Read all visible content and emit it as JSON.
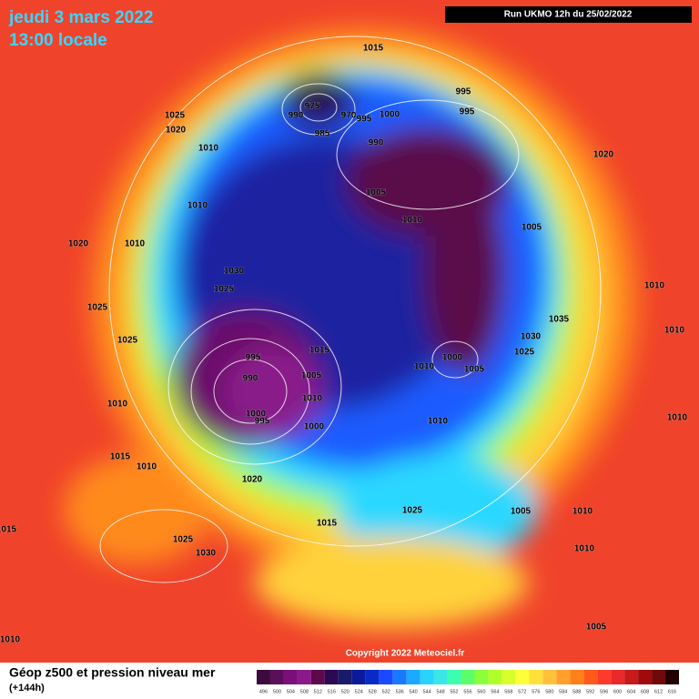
{
  "header": {
    "date": "jeudi 3 mars 2022",
    "time": "13:00 locale",
    "run": "Run UKMO 12h du 25/02/2022"
  },
  "isobar_labels": [
    "1015",
    "1025",
    "1020",
    "1010",
    "975",
    "970",
    "990",
    "985",
    "995",
    "1000",
    "995",
    "995",
    "990",
    "1020",
    "1010",
    "1005",
    "1010",
    "1020",
    "1010",
    "1005",
    "1030",
    "1025",
    "1010",
    "1035",
    "1025",
    "1010",
    "1030",
    "1025",
    "1015",
    "1025",
    "995",
    "1000",
    "1010",
    "1005",
    "990",
    "1005",
    "1010",
    "1010",
    "1000",
    "995",
    "1000",
    "1010",
    "1010",
    "1015",
    "1010",
    "1020",
    "1025",
    "1005",
    "1010",
    "1015",
    "1015",
    "1025",
    "1030",
    "1010",
    "1005",
    "1010"
  ],
  "copyright": "Copyright 2022 Meteociel.fr",
  "legend": {
    "title": "Géop z500 et pression niveau mer",
    "subtitle": "(+144h)",
    "scale": [
      "496",
      "500",
      "504",
      "508",
      "512",
      "516",
      "520",
      "524",
      "528",
      "532",
      "536",
      "540",
      "544",
      "548",
      "552",
      "556",
      "560",
      "564",
      "568",
      "572",
      "576",
      "580",
      "584",
      "588",
      "592",
      "596",
      "600",
      "604",
      "608",
      "612",
      "616"
    ]
  }
}
